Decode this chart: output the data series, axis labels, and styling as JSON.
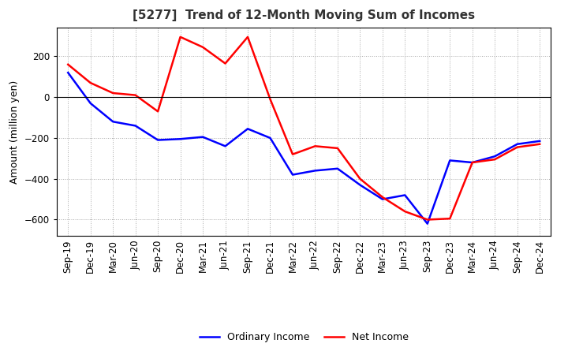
{
  "title": "[5277]  Trend of 12-Month Moving Sum of Incomes",
  "xlabel": "",
  "ylabel": "Amount (million yen)",
  "ylim": [
    -680,
    340
  ],
  "yticks": [
    -600,
    -400,
    -200,
    0,
    200
  ],
  "legend_labels": [
    "Ordinary Income",
    "Net Income"
  ],
  "ordinary_income_color": "#0000FF",
  "net_income_color": "#FF0000",
  "line_width": 1.8,
  "x_labels": [
    "Sep-19",
    "Dec-19",
    "Mar-20",
    "Jun-20",
    "Sep-20",
    "Dec-20",
    "Mar-21",
    "Jun-21",
    "Sep-21",
    "Dec-21",
    "Mar-22",
    "Jun-22",
    "Sep-22",
    "Dec-22",
    "Mar-23",
    "Jun-23",
    "Sep-23",
    "Dec-23",
    "Mar-24",
    "Jun-24",
    "Sep-24",
    "Dec-24"
  ],
  "ordinary_income": [
    120,
    -30,
    -120,
    -140,
    -210,
    -205,
    -195,
    -240,
    -155,
    -200,
    -380,
    -360,
    -350,
    -430,
    -500,
    -480,
    -620,
    -310,
    -320,
    -290,
    -230,
    -215
  ],
  "net_income": [
    160,
    70,
    20,
    10,
    -70,
    295,
    245,
    165,
    295,
    -10,
    -280,
    -240,
    -250,
    -400,
    -490,
    -560,
    -600,
    -595,
    -320,
    -305,
    -245,
    -230
  ],
  "background_color": "#ffffff",
  "grid_color": "#aaaaaa",
  "title_fontsize": 11,
  "title_color": "#333333",
  "label_fontsize": 9,
  "tick_fontsize": 8.5,
  "legend_fontsize": 9
}
